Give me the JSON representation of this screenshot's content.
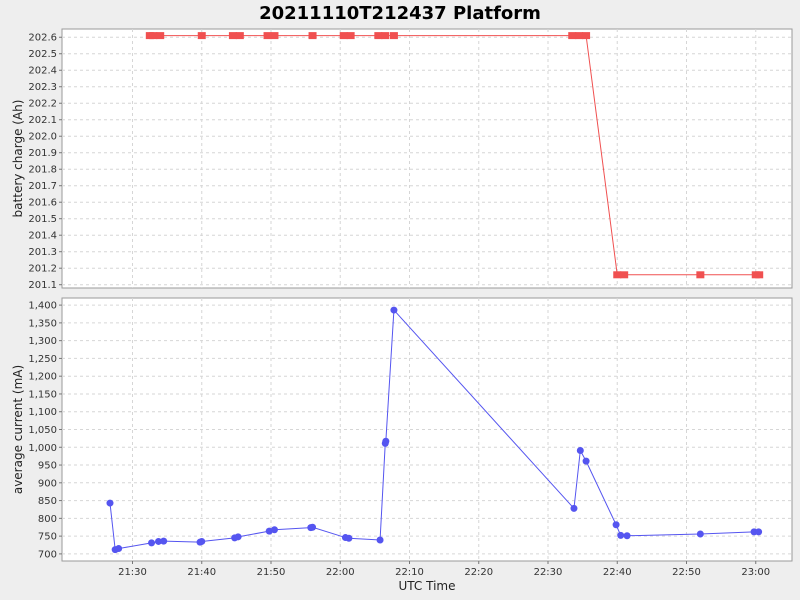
{
  "chart_data": {
    "type": "line",
    "title": "20211110T212437 Platform",
    "xlabel": "UTC Time",
    "x_ticks": [
      "21:30",
      "21:40",
      "21:50",
      "22:00",
      "22:10",
      "22:20",
      "22:30",
      "22:40",
      "22:50",
      "23:00"
    ],
    "grid": true,
    "legend": "none",
    "panels": [
      {
        "ylabel": "battery charge (Ah)",
        "ylim": [
          201.08,
          202.65
        ],
        "y_ticks": [
          "201.1",
          "201.2",
          "201.3",
          "201.4",
          "201.5",
          "201.6",
          "201.7",
          "201.8",
          "201.9",
          "202.0",
          "202.1",
          "202.2",
          "202.3",
          "202.4",
          "202.5",
          "202.6"
        ],
        "marker": "square",
        "color": "#f05050",
        "series": [
          {
            "x": [
              "21:32:30",
              "21:33:00",
              "21:34:00",
              "21:40:00",
              "21:44:30",
              "21:45:30",
              "21:49:30",
              "21:50:30",
              "21:56:00",
              "22:00:30",
              "22:01:30",
              "22:05:30",
              "22:06:30",
              "22:07:45",
              "22:33:30",
              "22:34:30",
              "22:35:30",
              "22:40:00",
              "22:41:00",
              "22:52:00",
              "23:00:00",
              "23:00:30"
            ],
            "y": [
              202.61,
              202.61,
              202.61,
              202.61,
              202.61,
              202.61,
              202.61,
              202.61,
              202.61,
              202.61,
              202.61,
              202.61,
              202.61,
              202.61,
              202.61,
              202.61,
              202.61,
              201.16,
              201.16,
              201.16,
              201.16,
              201.16
            ]
          }
        ]
      },
      {
        "ylabel": "average current (mA)",
        "ylim": [
          680,
          1420
        ],
        "y_ticks": [
          "700",
          "750",
          "800",
          "850",
          "900",
          "950",
          "1,000",
          "1,050",
          "1,100",
          "1,150",
          "1,200",
          "1,250",
          "1,300",
          "1,350",
          "1,400"
        ],
        "marker": "circle",
        "color": "#5555f0",
        "series": [
          {
            "x": [
              "21:26:45",
              "21:27:30",
              "21:28:00",
              "21:32:45",
              "21:33:45",
              "21:34:30",
              "21:39:45",
              "21:40:00",
              "21:44:45",
              "21:45:15",
              "21:49:45",
              "21:50:30",
              "21:55:45",
              "21:56:00",
              "22:00:45",
              "22:01:15",
              "22:05:45",
              "22:06:30",
              "22:06:35",
              "22:07:45",
              "22:33:45",
              "22:34:40",
              "22:35:30",
              "22:39:50",
              "22:40:30",
              "22:41:25",
              "22:52:00",
              "22:59:45",
              "23:00:25"
            ],
            "y": [
              843,
              712,
              715,
              731,
              735,
              736,
              733,
              735,
              745,
              748,
              764,
              768,
              774,
              775,
              746,
              744,
              739,
              1011,
              1017,
              1386,
              828,
              991,
              961,
              782,
              752,
              751,
              756,
              762,
              762
            ]
          }
        ]
      }
    ]
  }
}
